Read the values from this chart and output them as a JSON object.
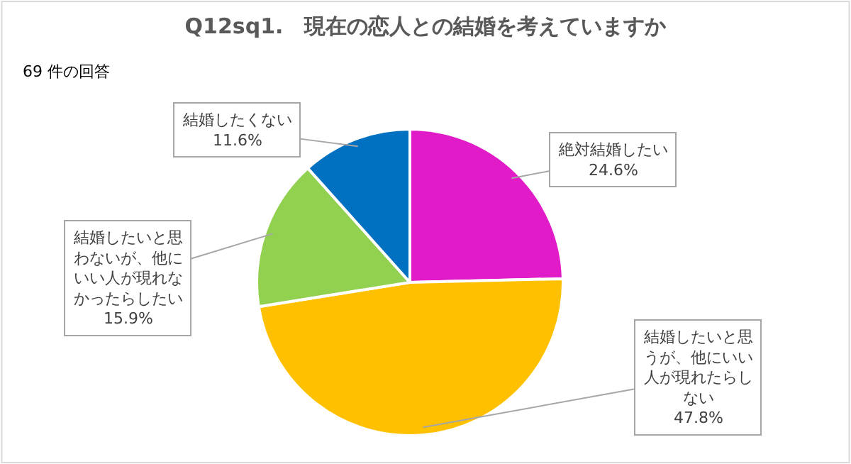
{
  "chart_data": {
    "type": "pie",
    "title": "Q12sq1.　現在の恋人との結婚を考えていますか",
    "subtitle": "69 件の回答",
    "categories": [
      "絶対結婚したい",
      "結婚したいと思うが、他にいい人が現れたらしない",
      "結婚したいと思わないが、他にいい人が現れなかったらしたい",
      "結婚したくない"
    ],
    "values": [
      24.6,
      47.8,
      15.9,
      11.6
    ],
    "colors": [
      "#e21bc8",
      "#ffc000",
      "#92d050",
      "#0070c0"
    ],
    "value_labels": [
      "24.6%",
      "47.8%",
      "15.9%",
      "11.6%"
    ],
    "legend": false
  }
}
